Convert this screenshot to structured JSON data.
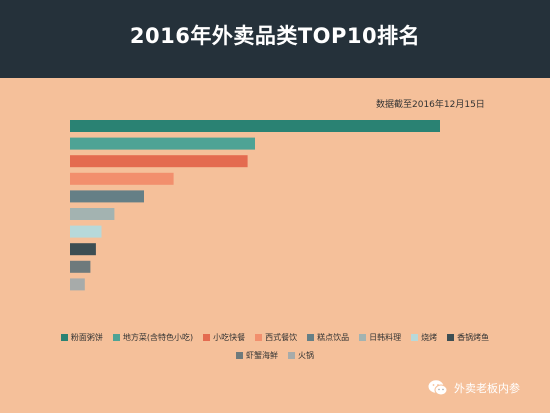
{
  "header": {
    "title": "2016年外卖品类TOP10排名"
  },
  "note": {
    "date": "数据截至2016年12月15日"
  },
  "watermark": {
    "text": "外卖老板内参",
    "icon": "wechat-icon"
  },
  "colors": {
    "background": "#f5c19a",
    "header": "#25313a"
  },
  "chart_data": {
    "type": "bar",
    "orientation": "horizontal",
    "title": "2016年外卖品类TOP10排名",
    "xlabel": "",
    "ylabel": "",
    "xlim": [
      0,
      100
    ],
    "grid": false,
    "axis_labels_shown": false,
    "legend_position": "bottom",
    "categories": [
      "粉面粥饼",
      "地方菜(含特色小吃)",
      "小吃快餐",
      "西式餐饮",
      "糕点饮品",
      "日韩料理",
      "烧烤",
      "香锅烤鱼",
      "虾蟹海鲜",
      "火锅"
    ],
    "values": [
      100,
      50,
      48,
      28,
      20,
      12,
      8.5,
      7,
      5.5,
      4
    ],
    "colors": [
      "#2a8273",
      "#4ea395",
      "#e46b50",
      "#f28f6d",
      "#657f86",
      "#a3b3b1",
      "#b7d9da",
      "#3d4e53",
      "#6e7a7c",
      "#a7abaa"
    ]
  }
}
